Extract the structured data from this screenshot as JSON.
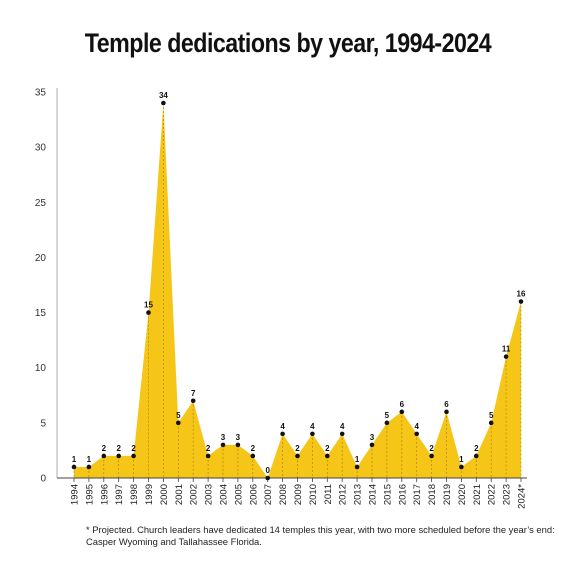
{
  "chart_data": {
    "type": "area",
    "title": "Temple dedications by year, 1994-2024",
    "xlabel": "",
    "ylabel": "",
    "ylim": [
      0,
      35
    ],
    "yticks": [
      "0",
      "5",
      "10",
      "15",
      "20",
      "25",
      "30",
      "35"
    ],
    "grid": false,
    "color": "#f5c518",
    "categories": [
      "1994",
      "1995",
      "1996",
      "1997",
      "1998",
      "1999",
      "2000",
      "2001",
      "2002",
      "2003",
      "2004",
      "2005",
      "2006",
      "2007",
      "2008",
      "2009",
      "2010",
      "2011",
      "2012",
      "2013",
      "2014",
      "2015",
      "2016",
      "2017",
      "2018",
      "2019",
      "2020",
      "2021",
      "2022",
      "2023",
      "2024*"
    ],
    "values": [
      1,
      1,
      2,
      2,
      2,
      15,
      34,
      5,
      7,
      2,
      3,
      3,
      2,
      0,
      4,
      2,
      4,
      2,
      4,
      1,
      3,
      5,
      6,
      4,
      2,
      6,
      1,
      2,
      5,
      11,
      16
    ],
    "footnote": "* Projected. Church leaders have dedicated 14 temples this year, with two more scheduled before the year’s end: Casper Wyoming and Tallahassee Florida."
  }
}
